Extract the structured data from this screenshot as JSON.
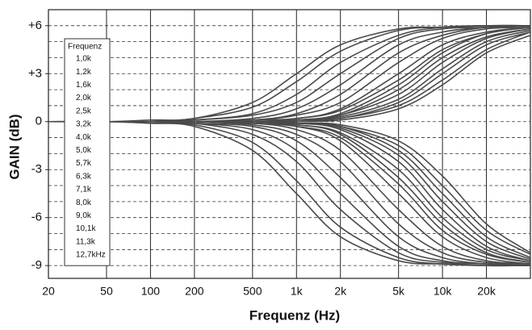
{
  "chart_data": {
    "type": "line",
    "xlabel": "Frequenz (Hz)",
    "ylabel": "GAIN (dB)",
    "legend_title": "Frequenz",
    "legend": "upper left",
    "log_x": true,
    "grid": true,
    "color": "#4a4a4a",
    "x": [
      20,
      50,
      100,
      200,
      500,
      1000,
      2000,
      5000,
      10000,
      20000,
      40000
    ],
    "xlim": [
      20,
      40000
    ],
    "xticks": [
      20,
      50,
      100,
      200,
      500,
      {
        "value": 1000,
        "label": "1k"
      },
      {
        "value": 2000,
        "label": "2k"
      },
      {
        "value": 5000,
        "label": "5k"
      },
      {
        "value": 10000,
        "label": "10k"
      },
      {
        "value": 20000,
        "label": "20k"
      }
    ],
    "ylim": [
      -9.8,
      7
    ],
    "yticks": [
      {
        "value": 6,
        "label": "+6"
      },
      {
        "value": 3,
        "label": "+3"
      },
      0,
      -3,
      -6,
      -9
    ],
    "minor_yticks": [
      -9,
      -8,
      -7,
      -6,
      -5,
      -4,
      -3,
      -2,
      -1,
      0,
      1,
      2,
      3,
      4,
      5,
      6
    ],
    "series": [
      {
        "name": "1,0k",
        "values": [
          0,
          0,
          0.1,
          0.2,
          1.2,
          3.0,
          4.8,
          5.8,
          5.9,
          6.0,
          6.0
        ]
      },
      {
        "name": "1,2k",
        "values": [
          0,
          0,
          0,
          0.2,
          0.9,
          2.5,
          4.4,
          5.7,
          5.9,
          6.0,
          6.0
        ]
      },
      {
        "name": "1,6k",
        "values": [
          0,
          0,
          0,
          0.1,
          0.5,
          1.7,
          3.7,
          5.4,
          5.9,
          6.0,
          6.0
        ]
      },
      {
        "name": "2,0k",
        "values": [
          0,
          0,
          0,
          0.1,
          0.4,
          1.2,
          3.0,
          5.2,
          5.8,
          5.9,
          6.0
        ]
      },
      {
        "name": "2,5k",
        "values": [
          0,
          0,
          0,
          0,
          0.2,
          0.8,
          2.3,
          4.8,
          5.6,
          5.9,
          6.0
        ]
      },
      {
        "name": "3,2k",
        "values": [
          0,
          0,
          0,
          0,
          0.1,
          0.5,
          1.7,
          4.3,
          5.4,
          5.9,
          6.0
        ]
      },
      {
        "name": "4,0k",
        "values": [
          0,
          0,
          0,
          0,
          0.1,
          0.4,
          1.2,
          3.7,
          5.2,
          5.8,
          5.9
        ]
      },
      {
        "name": "5,0k",
        "values": [
          0,
          0,
          0,
          0,
          0.1,
          0.2,
          0.8,
          3.0,
          4.8,
          5.6,
          5.9
        ]
      },
      {
        "name": "5,7k",
        "values": [
          0,
          0,
          0,
          0,
          0,
          0.2,
          0.7,
          2.6,
          4.5,
          5.5,
          5.9
        ]
      },
      {
        "name": "6,3k",
        "values": [
          0,
          0,
          0,
          0,
          0,
          0.1,
          0.5,
          2.3,
          4.3,
          5.5,
          5.9
        ]
      },
      {
        "name": "7,1k",
        "values": [
          0,
          0,
          0,
          0,
          0,
          0.1,
          0.4,
          2.0,
          4.0,
          5.3,
          5.8
        ]
      },
      {
        "name": "8,0k",
        "values": [
          0,
          0,
          0,
          0,
          0,
          0.1,
          0.4,
          1.7,
          3.7,
          5.2,
          5.8
        ]
      },
      {
        "name": "9,0k",
        "values": [
          0,
          0,
          0,
          0,
          0,
          0.1,
          0.3,
          1.4,
          3.3,
          5.0,
          5.7
        ]
      },
      {
        "name": "10,1k",
        "values": [
          0,
          0,
          0,
          0,
          0,
          0.1,
          0.2,
          1.2,
          3.0,
          4.8,
          5.6
        ]
      },
      {
        "name": "11,3k",
        "values": [
          0,
          0,
          0,
          0,
          0,
          0,
          0.2,
          1.0,
          2.6,
          4.5,
          5.6
        ]
      },
      {
        "name": "12,7kHz",
        "values": [
          0,
          0,
          0,
          0,
          0,
          0,
          0.1,
          0.8,
          2.3,
          4.3,
          5.4
        ]
      }
    ],
    "cut_series": [
      {
        "values": [
          0,
          0,
          -0.1,
          -0.3,
          -1.8,
          -4.5,
          -7.2,
          -8.7,
          -8.9,
          -9.0,
          -9.0
        ]
      },
      {
        "values": [
          0,
          0,
          -0.1,
          -0.2,
          -1.3,
          -3.7,
          -6.6,
          -8.5,
          -8.9,
          -9.0,
          -9.0
        ]
      },
      {
        "values": [
          0,
          0,
          0,
          -0.1,
          -0.8,
          -2.5,
          -5.5,
          -8.2,
          -8.8,
          -8.9,
          -9.0
        ]
      },
      {
        "values": [
          0,
          0,
          0,
          -0.1,
          -0.5,
          -1.8,
          -4.5,
          -7.8,
          -8.7,
          -8.9,
          -9.0
        ]
      },
      {
        "values": [
          0,
          0,
          0,
          -0.1,
          -0.3,
          -1.2,
          -3.5,
          -7.2,
          -8.5,
          -8.9,
          -9.0
        ]
      },
      {
        "values": [
          0,
          0,
          0,
          0,
          -0.2,
          -0.8,
          -2.5,
          -6.4,
          -8.2,
          -8.8,
          -8.9
        ]
      },
      {
        "values": [
          0,
          0,
          0,
          0,
          -0.1,
          -0.5,
          -1.8,
          -5.5,
          -7.8,
          -8.7,
          -8.9
        ]
      },
      {
        "values": [
          0,
          0,
          0,
          0,
          -0.1,
          -0.3,
          -1.2,
          -4.5,
          -7.2,
          -8.5,
          -8.9
        ]
      },
      {
        "values": [
          0,
          0,
          0,
          0,
          -0.1,
          -0.3,
          -1.0,
          -3.9,
          -6.8,
          -8.3,
          -8.8
        ]
      },
      {
        "values": [
          0,
          0,
          0,
          0,
          -0.1,
          -0.2,
          -0.8,
          -3.5,
          -6.4,
          -8.2,
          -8.8
        ]
      },
      {
        "values": [
          0,
          0,
          0,
          0,
          0,
          -0.2,
          -0.7,
          -3.0,
          -6.0,
          -8.0,
          -8.7
        ]
      },
      {
        "values": [
          0,
          0,
          0,
          0,
          0,
          -0.1,
          -0.5,
          -2.5,
          -5.5,
          -7.8,
          -8.7
        ]
      },
      {
        "values": [
          0,
          0,
          0,
          0,
          0,
          -0.1,
          -0.4,
          -2.1,
          -5.0,
          -7.5,
          -8.6
        ]
      },
      {
        "values": [
          0,
          0,
          0,
          0,
          0,
          -0.1,
          -0.3,
          -1.8,
          -4.5,
          -7.2,
          -8.5
        ]
      },
      {
        "values": [
          0,
          0,
          0,
          0,
          0,
          -0.1,
          -0.3,
          -1.5,
          -4.0,
          -6.8,
          -8.3
        ]
      },
      {
        "values": [
          0,
          0,
          0,
          0,
          0,
          -0.1,
          -0.2,
          -1.2,
          -3.4,
          -6.4,
          -8.2
        ]
      }
    ]
  }
}
